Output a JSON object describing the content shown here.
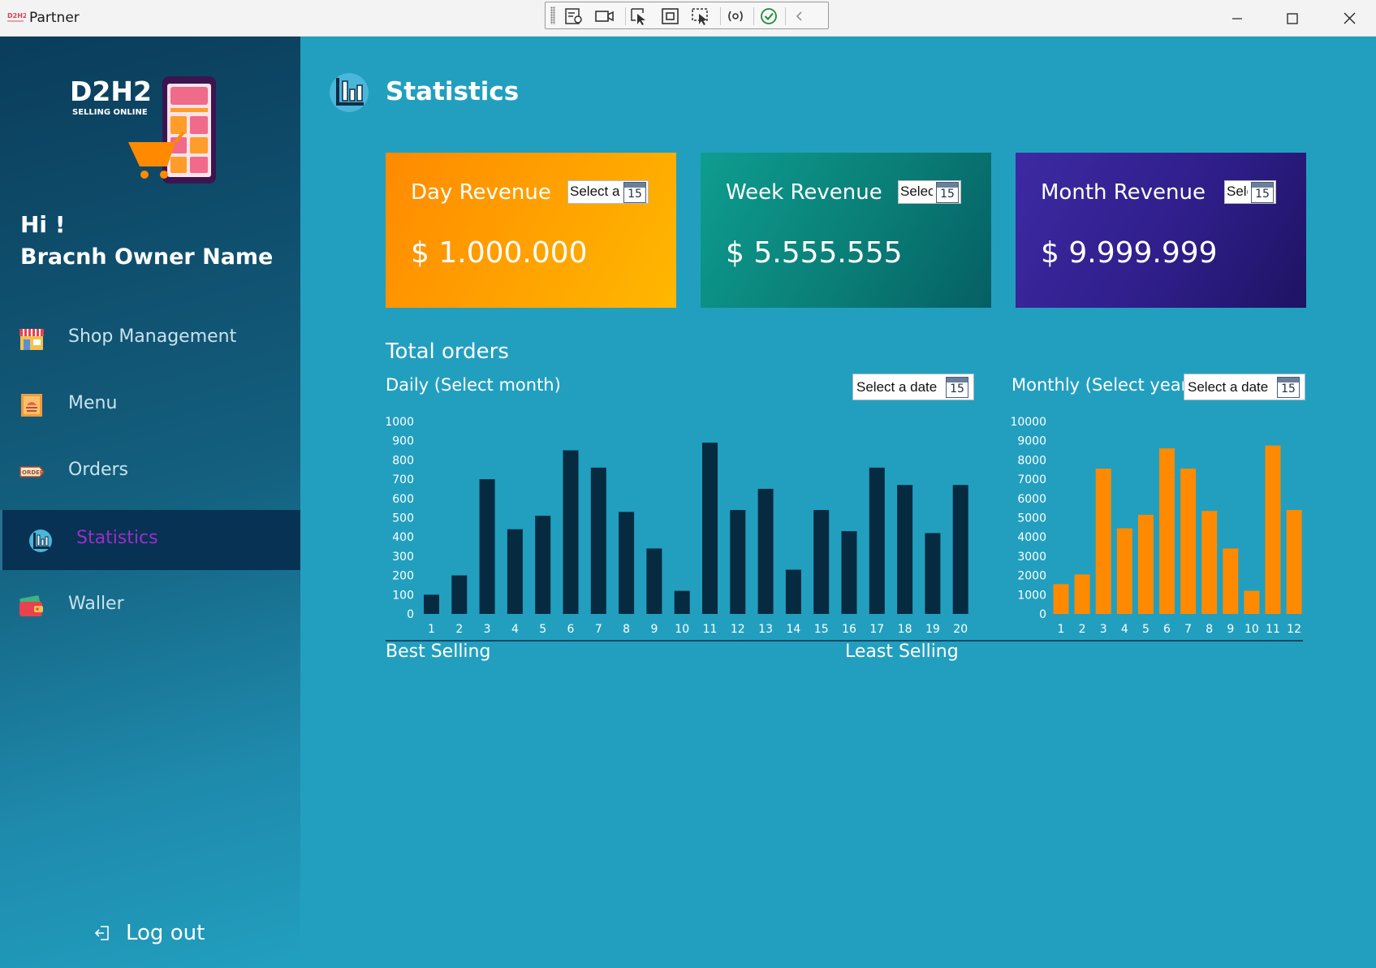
{
  "window": {
    "title": "Partner",
    "logo_text": "D2H2"
  },
  "sidebar": {
    "brand_name": "D2H2",
    "brand_tagline": "SELLING ONLINE",
    "greeting": "Hi !",
    "owner_name": "Bracnh Owner Name",
    "items": [
      {
        "label": "Shop Management",
        "icon": "shop-icon"
      },
      {
        "label": "Menu",
        "icon": "menu-icon"
      },
      {
        "label": "Orders",
        "icon": "order-tag-icon"
      },
      {
        "label": "Statistics",
        "icon": "statistics-icon",
        "active": true
      },
      {
        "label": "Waller",
        "icon": "wallet-icon"
      }
    ],
    "logout_label": "Log out"
  },
  "main": {
    "title": "Statistics",
    "cards": [
      {
        "title": "Day Revenue",
        "value": "$ 1.000.000",
        "picker_text": "Select a date",
        "calendar_day": "15"
      },
      {
        "title": "Week Revenue",
        "value": "$ 5.555.555",
        "picker_text": "Select a date",
        "calendar_day": "15"
      },
      {
        "title": "Month Revenue",
        "value": "$ 9.999.999",
        "picker_text": "Select a date",
        "calendar_day": "15"
      }
    ],
    "total_orders_title": "Total orders",
    "daily_label": "Daily (Select month)",
    "monthly_label": "Monthly (Select year)",
    "daily_picker": "Select a date",
    "monthly_picker": "Select a date",
    "calendar_day": "15",
    "best_selling": "Best Selling",
    "least_selling": "Least Selling"
  },
  "colors": {
    "background": "#229fbf",
    "daily_bar": "#062a40",
    "monthly_bar": "#ff8a00",
    "active_nav_text": "#9b2fc8"
  },
  "chart_data": [
    {
      "type": "bar",
      "title": "Daily (Select month)",
      "categories": [
        "1",
        "2",
        "3",
        "4",
        "5",
        "6",
        "7",
        "8",
        "9",
        "10",
        "11",
        "12",
        "13",
        "14",
        "15",
        "16",
        "17",
        "18",
        "19",
        "20"
      ],
      "values": [
        100,
        200,
        700,
        440,
        510,
        850,
        760,
        530,
        340,
        120,
        890,
        540,
        650,
        230,
        540,
        430,
        760,
        670,
        420,
        670
      ],
      "ylim": [
        0,
        1000
      ],
      "yticks": [
        0,
        100,
        200,
        300,
        400,
        500,
        600,
        700,
        800,
        900,
        1000
      ],
      "grid": false
    },
    {
      "type": "bar",
      "title": "Monthly (Select year)",
      "categories": [
        "1",
        "2",
        "3",
        "4",
        "5",
        "6",
        "7",
        "8",
        "9",
        "10",
        "11",
        "12"
      ],
      "values": [
        1550,
        2050,
        7550,
        4450,
        5150,
        8600,
        7550,
        5350,
        3400,
        1200,
        8750,
        5400
      ],
      "ylim": [
        0,
        10000
      ],
      "yticks": [
        0,
        1000,
        2000,
        3000,
        4000,
        5000,
        6000,
        7000,
        8000,
        9000,
        10000
      ],
      "grid": false
    }
  ]
}
